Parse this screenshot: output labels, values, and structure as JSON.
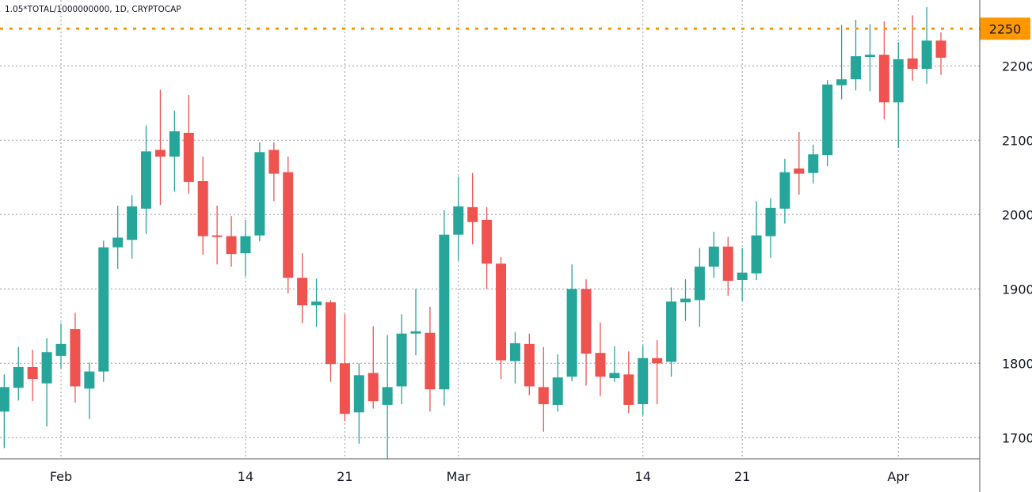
{
  "title": "1.05*TOTAL/1000000000, 1D, CRYPTOCAP",
  "chart_data": {
    "type": "candlestick",
    "title": "1.05*TOTAL/1000000000, 1D, CRYPTOCAP",
    "ylim": [
      1672,
      2285
    ],
    "grid": true,
    "y_ticks": [
      "1700",
      "1800",
      "1900",
      "2000",
      "2100",
      "2200"
    ],
    "x_ticks": [
      {
        "date": "02-01",
        "label": "Feb"
      },
      {
        "date": "02-14",
        "label": "14"
      },
      {
        "date": "02-21",
        "label": "21"
      },
      {
        "date": "03-01",
        "label": "Mar"
      },
      {
        "date": "03-14",
        "label": "14"
      },
      {
        "date": "03-21",
        "label": "21"
      },
      {
        "date": "04-01",
        "label": "Apr"
      }
    ],
    "horizontal_line": {
      "value": 2250,
      "label": "2250",
      "color": "#ff9800"
    },
    "colors": {
      "up": "#26a69a",
      "down": "#ef5350"
    },
    "candle_fields": [
      "date",
      "open",
      "high",
      "low",
      "close"
    ],
    "candles": [
      [
        "01-28",
        1735,
        1785,
        1686,
        1768
      ],
      [
        "01-29",
        1767,
        1822,
        1750,
        1795
      ],
      [
        "01-30",
        1795,
        1818,
        1749,
        1779
      ],
      [
        "01-31",
        1773,
        1834,
        1715,
        1815
      ],
      [
        "02-01",
        1810,
        1854,
        1793,
        1826
      ],
      [
        "02-02",
        1846,
        1868,
        1747,
        1769
      ],
      [
        "02-03",
        1766,
        1801,
        1725,
        1789
      ],
      [
        "02-04",
        1789,
        1965,
        1775,
        1956
      ],
      [
        "02-05",
        1956,
        2012,
        1927,
        1969
      ],
      [
        "02-06",
        1966,
        2026,
        1941,
        2011
      ],
      [
        "02-07",
        2008,
        2120,
        1974,
        2085
      ],
      [
        "02-08",
        2087,
        2168,
        2013,
        2078
      ],
      [
        "02-09",
        2078,
        2140,
        2031,
        2112
      ],
      [
        "02-10",
        2110,
        2161,
        2028,
        2044
      ],
      [
        "02-11",
        2045,
        2078,
        1946,
        1971
      ],
      [
        "02-12",
        1972,
        2012,
        1933,
        1970
      ],
      [
        "02-13",
        1971,
        1998,
        1930,
        1947
      ],
      [
        "02-14",
        1948,
        1993,
        1917,
        1971
      ],
      [
        "02-15",
        1972,
        2097,
        1964,
        2084
      ],
      [
        "02-16",
        2087,
        2097,
        2018,
        2055
      ],
      [
        "02-17",
        2057,
        2078,
        1894,
        1915
      ],
      [
        "02-18",
        1915,
        1948,
        1854,
        1878
      ],
      [
        "02-19",
        1878,
        1914,
        1849,
        1883
      ],
      [
        "02-20",
        1882,
        1885,
        1775,
        1799
      ],
      [
        "02-21",
        1800,
        1866,
        1722,
        1732
      ],
      [
        "02-22",
        1734,
        1800,
        1692,
        1784
      ],
      [
        "02-23",
        1787,
        1850,
        1739,
        1749
      ],
      [
        "02-24",
        1744,
        1838,
        1672,
        1768
      ],
      [
        "02-25",
        1769,
        1866,
        1745,
        1840
      ],
      [
        "02-26",
        1840,
        1900,
        1811,
        1843
      ],
      [
        "02-27",
        1841,
        1876,
        1735,
        1765
      ],
      [
        "02-28",
        1765,
        2006,
        1743,
        1973
      ],
      [
        "03-01",
        1973,
        2051,
        1938,
        2011
      ],
      [
        "03-02",
        2010,
        2056,
        1960,
        1990
      ],
      [
        "03-03",
        1993,
        2010,
        1900,
        1934
      ],
      [
        "03-04",
        1934,
        1943,
        1779,
        1804
      ],
      [
        "03-05",
        1803,
        1842,
        1773,
        1827
      ],
      [
        "03-06",
        1826,
        1840,
        1757,
        1769
      ],
      [
        "03-07",
        1768,
        1822,
        1708,
        1745
      ],
      [
        "03-08",
        1744,
        1812,
        1735,
        1781
      ],
      [
        "03-09",
        1782,
        1933,
        1776,
        1900
      ],
      [
        "03-10",
        1900,
        1913,
        1770,
        1813
      ],
      [
        "03-11",
        1814,
        1855,
        1756,
        1782
      ],
      [
        "03-12",
        1780,
        1823,
        1775,
        1787
      ],
      [
        "03-13",
        1785,
        1816,
        1733,
        1744
      ],
      [
        "03-14",
        1745,
        1824,
        1730,
        1807
      ],
      [
        "03-15",
        1807,
        1831,
        1745,
        1800
      ],
      [
        "03-16",
        1802,
        1902,
        1782,
        1883
      ],
      [
        "03-17",
        1882,
        1913,
        1857,
        1887
      ],
      [
        "03-18",
        1885,
        1955,
        1849,
        1930
      ],
      [
        "03-19",
        1930,
        1977,
        1915,
        1957
      ],
      [
        "03-20",
        1957,
        1970,
        1891,
        1911
      ],
      [
        "03-21",
        1912,
        1955,
        1884,
        1922
      ],
      [
        "03-22",
        1921,
        2018,
        1912,
        1972
      ],
      [
        "03-23",
        1971,
        2022,
        1942,
        2009
      ],
      [
        "03-24",
        2008,
        2075,
        1988,
        2057
      ],
      [
        "03-25",
        2062,
        2111,
        2027,
        2055
      ],
      [
        "03-26",
        2056,
        2094,
        2042,
        2081
      ],
      [
        "03-27",
        2080,
        2181,
        2065,
        2175
      ],
      [
        "03-28",
        2174,
        2255,
        2155,
        2182
      ],
      [
        "03-29",
        2182,
        2262,
        2167,
        2213
      ],
      [
        "03-30",
        2212,
        2256,
        2166,
        2215
      ],
      [
        "03-31",
        2215,
        2260,
        2128,
        2151
      ],
      [
        "04-01",
        2151,
        2232,
        2090,
        2209
      ],
      [
        "04-02",
        2210,
        2268,
        2180,
        2196
      ],
      [
        "04-03",
        2196,
        2279,
        2176,
        2234
      ],
      [
        "04-04",
        2234,
        2245,
        2188,
        2211
      ]
    ]
  }
}
